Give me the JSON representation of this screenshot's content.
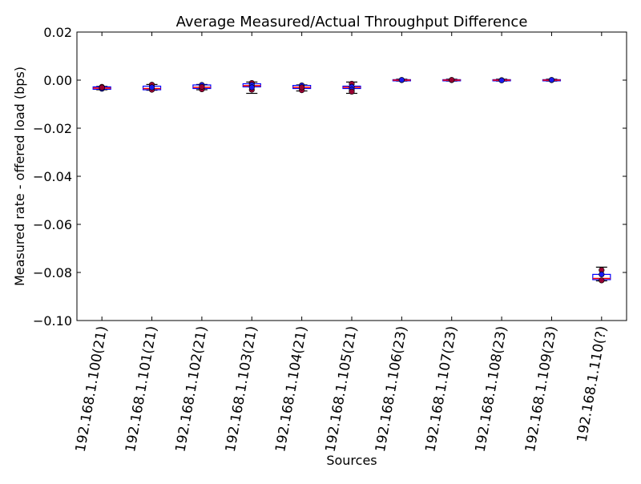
{
  "chart_data": {
    "type": "box",
    "title": "Average Measured/Actual Throughput Difference",
    "xlabel": "Sources",
    "ylabel": "Measured rate - offered load (bps)",
    "ylim": [
      -0.1,
      0.02
    ],
    "yticks": [
      0.02,
      0.0,
      -0.02,
      -0.04,
      -0.06,
      -0.08,
      -0.1
    ],
    "ytick_labels": [
      "0.02",
      "0.00",
      "−0.02",
      "−0.04",
      "−0.06",
      "−0.08",
      "−0.10"
    ],
    "grid": false,
    "categories": [
      "192.168.1.100(21)",
      "192.168.1.101(21)",
      "192.168.1.102(21)",
      "192.168.1.103(21)",
      "192.168.1.104(21)",
      "192.168.1.105(21)",
      "192.168.1.106(23)",
      "192.168.1.107(23)",
      "192.168.1.108(23)",
      "192.168.1.109(23)",
      "192.168.1.110(?)"
    ],
    "boxes": [
      {
        "q1": -0.0038,
        "median": -0.0033,
        "q3": -0.0028,
        "whisker_low": -0.004,
        "whisker_high": -0.0026,
        "points": [
          {
            "y": -0.0028,
            "color": "#990033"
          },
          {
            "y": -0.0036,
            "color": "#1a1aee"
          },
          {
            "y": -0.0031,
            "color": "#990033"
          }
        ]
      },
      {
        "q1": -0.004,
        "median": -0.0035,
        "q3": -0.0025,
        "whisker_low": -0.0042,
        "whisker_high": -0.0018,
        "points": [
          {
            "y": -0.0019,
            "color": "#990033"
          },
          {
            "y": -0.004,
            "color": "#990033"
          },
          {
            "y": -0.003,
            "color": "#1a1aee"
          }
        ]
      },
      {
        "q1": -0.0035,
        "median": -0.003,
        "q3": -0.002,
        "whisker_low": -0.004,
        "whisker_high": -0.0018,
        "points": [
          {
            "y": -0.002,
            "color": "#1a1aee"
          },
          {
            "y": -0.0038,
            "color": "#990033"
          },
          {
            "y": -0.0028,
            "color": "#990033"
          }
        ]
      },
      {
        "q1": -0.0028,
        "median": -0.0023,
        "q3": -0.0015,
        "whisker_low": -0.0055,
        "whisker_high": -0.0008,
        "points": [
          {
            "y": -0.0012,
            "color": "#990033"
          },
          {
            "y": -0.004,
            "color": "#990033"
          },
          {
            "y": -0.002,
            "color": "#1a1aee"
          },
          {
            "y": -0.003,
            "color": "#1a1aee"
          }
        ]
      },
      {
        "q1": -0.0035,
        "median": -0.003,
        "q3": -0.0022,
        "whisker_low": -0.0045,
        "whisker_high": -0.002,
        "points": [
          {
            "y": -0.0022,
            "color": "#1a1aee"
          },
          {
            "y": -0.0042,
            "color": "#990033"
          },
          {
            "y": -0.003,
            "color": "#990033"
          }
        ]
      },
      {
        "q1": -0.0035,
        "median": -0.003,
        "q3": -0.0025,
        "whisker_low": -0.0055,
        "whisker_high": -0.0008,
        "points": [
          {
            "y": -0.0015,
            "color": "#990033"
          },
          {
            "y": -0.0028,
            "color": "#1a1aee"
          },
          {
            "y": -0.004,
            "color": "#1a1aee"
          },
          {
            "y": -0.0048,
            "color": "#990033"
          }
        ]
      },
      {
        "q1": -0.0002,
        "median": 0.0,
        "q3": 0.0002,
        "whisker_low": -0.0004,
        "whisker_high": 0.0004,
        "points": [
          {
            "y": 0.0,
            "color": "#990033"
          },
          {
            "y": 0.0001,
            "color": "#1a1aee"
          }
        ]
      },
      {
        "q1": -0.0002,
        "median": 0.0,
        "q3": 0.0002,
        "whisker_low": -0.0004,
        "whisker_high": 0.0004,
        "points": [
          {
            "y": 0.0,
            "color": "#1a1aee"
          },
          {
            "y": 0.0001,
            "color": "#990033"
          }
        ]
      },
      {
        "q1": -0.0002,
        "median": 0.0,
        "q3": 0.0002,
        "whisker_low": -0.0004,
        "whisker_high": 0.0004,
        "points": [
          {
            "y": 0.0,
            "color": "#990033"
          },
          {
            "y": -0.0001,
            "color": "#1a1aee"
          }
        ]
      },
      {
        "q1": -0.0002,
        "median": 0.0,
        "q3": 0.0002,
        "whisker_low": -0.0004,
        "whisker_high": 0.0004,
        "points": [
          {
            "y": 0.0,
            "color": "#990033"
          },
          {
            "y": 0.0001,
            "color": "#1a1aee"
          }
        ]
      },
      {
        "q1": -0.083,
        "median": -0.0825,
        "q3": -0.0808,
        "whisker_low": -0.0835,
        "whisker_high": -0.0778,
        "points": [
          {
            "y": -0.079,
            "color": "#990033"
          },
          {
            "y": -0.0808,
            "color": "#1a1aee"
          },
          {
            "y": -0.0833,
            "color": "#990033"
          }
        ]
      }
    ],
    "colors": {
      "box": "#0000ff",
      "median": "#ff0000",
      "whisker": "#000000",
      "point_red": "#990033",
      "point_blue": "#1a1aee"
    }
  }
}
